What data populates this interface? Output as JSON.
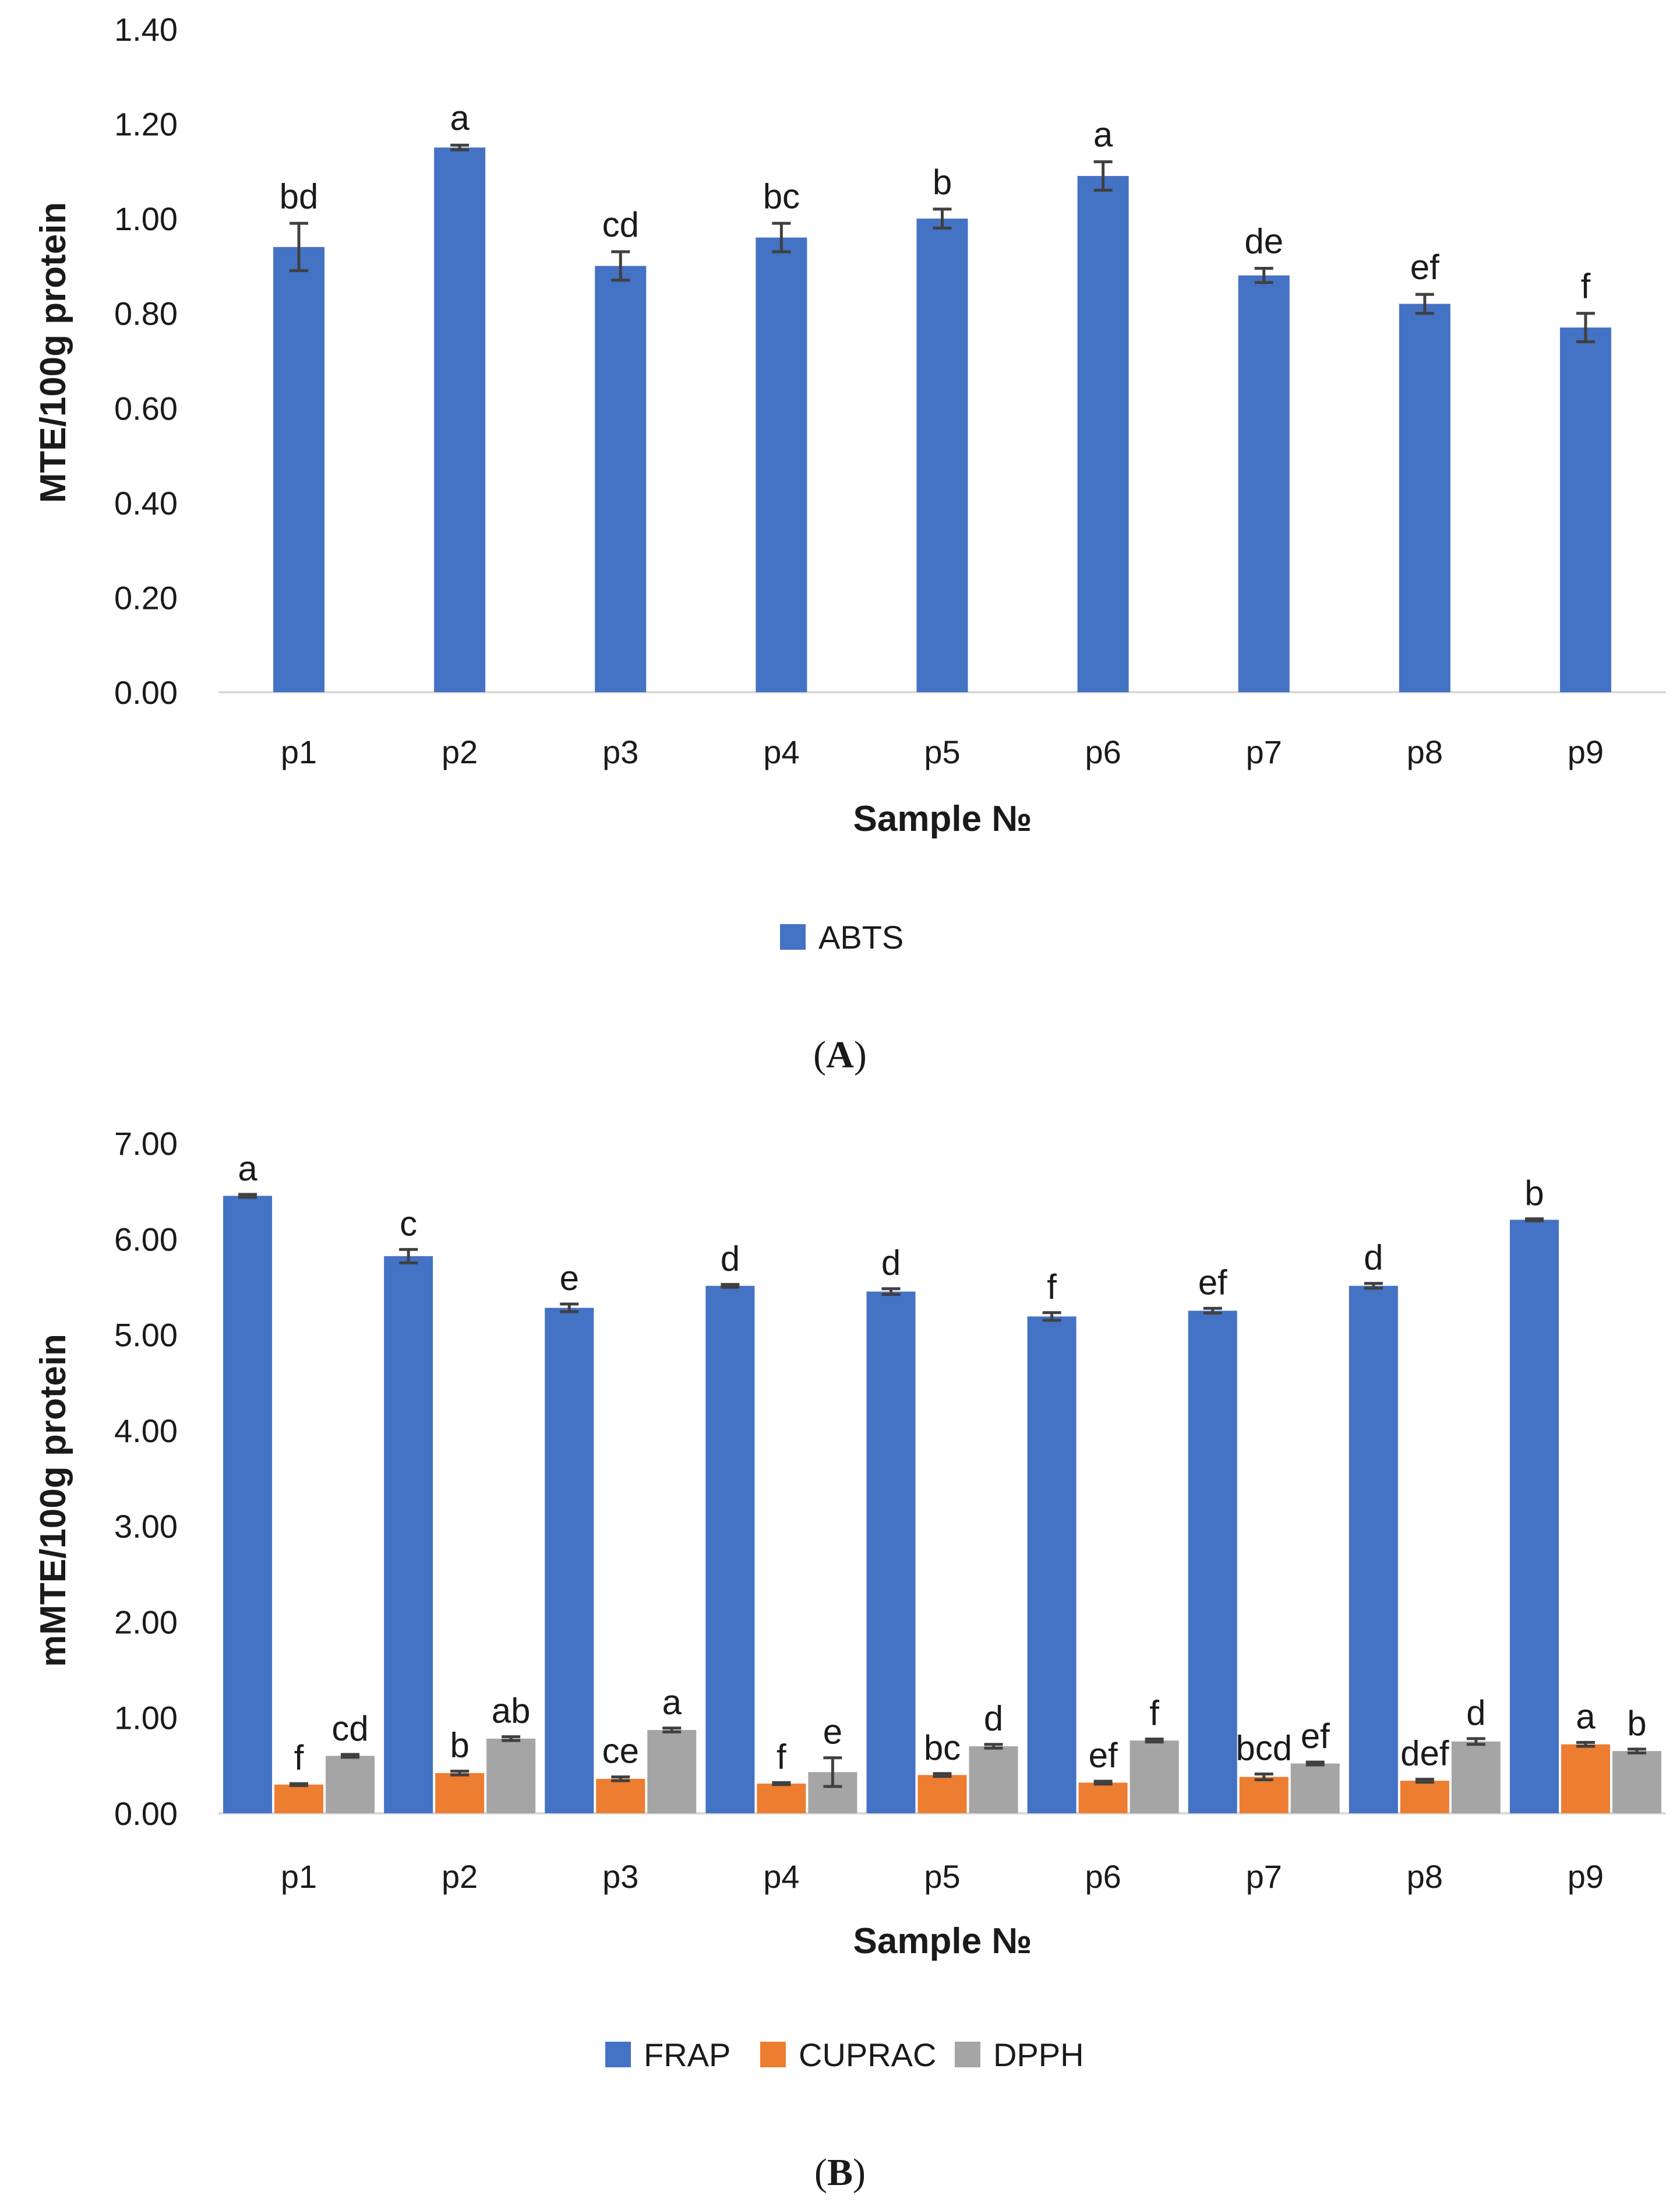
{
  "colors": {
    "ABTS": "#4472C4",
    "FRAP": "#4472C4",
    "CUPRAC": "#ED7D31",
    "DPPH": "#A5A5A5",
    "error_bar": "#404040",
    "axis_line": "#D9D9D9"
  },
  "chart_data": [
    {
      "type": "bar",
      "panel": "(A)",
      "panel_open": "(",
      "panel_letter": "A",
      "panel_close": ")",
      "categories": [
        "p1",
        "p2",
        "p3",
        "p4",
        "p5",
        "p6",
        "p7",
        "p8",
        "p9"
      ],
      "series": [
        {
          "name": "ABTS",
          "values": [
            0.94,
            1.15,
            0.9,
            0.96,
            1.0,
            1.09,
            0.88,
            0.82,
            0.77
          ],
          "errors": [
            0.05,
            0.005,
            0.03,
            0.03,
            0.02,
            0.03,
            0.015,
            0.02,
            0.03
          ],
          "letters": [
            "bd",
            "a",
            "cd",
            "bc",
            "b",
            "a",
            "de",
            "ef",
            "f"
          ]
        }
      ],
      "xlabel": "Sample №",
      "ylabel": "MTE/100g protein",
      "ylim": [
        0,
        1.4
      ],
      "yticks": [
        "0.00",
        "0.20",
        "0.40",
        "0.60",
        "0.80",
        "1.00",
        "1.20",
        "1.40"
      ],
      "grid": false,
      "legend": "bottom-center"
    },
    {
      "type": "bar",
      "panel": "(B)",
      "panel_open": "(",
      "panel_letter": "B",
      "panel_close": ")",
      "categories": [
        "p1",
        "p2",
        "p3",
        "p4",
        "p5",
        "p6",
        "p7",
        "p8",
        "p9"
      ],
      "series": [
        {
          "name": "FRAP",
          "values": [
            6.45,
            5.82,
            5.28,
            5.51,
            5.45,
            5.19,
            5.25,
            5.51,
            6.2
          ],
          "errors": [
            0.015,
            0.07,
            0.04,
            0.015,
            0.03,
            0.04,
            0.025,
            0.025,
            0.01
          ],
          "letters": [
            "a",
            "c",
            "e",
            "d",
            "d",
            "f",
            "ef",
            "d",
            "b"
          ]
        },
        {
          "name": "CUPRAC",
          "values": [
            0.3,
            0.42,
            0.36,
            0.31,
            0.4,
            0.32,
            0.38,
            0.34,
            0.72
          ],
          "errors": [
            0.01,
            0.02,
            0.02,
            0.01,
            0.015,
            0.015,
            0.03,
            0.015,
            0.02
          ],
          "letters": [
            "f",
            "b",
            "ce",
            "f",
            "bc",
            "ef",
            "bcd",
            "def",
            "a"
          ]
        },
        {
          "name": "DPPH",
          "values": [
            0.6,
            0.78,
            0.87,
            0.43,
            0.7,
            0.76,
            0.52,
            0.75,
            0.65
          ],
          "errors": [
            0.015,
            0.02,
            0.02,
            0.15,
            0.02,
            0.015,
            0.015,
            0.03,
            0.02
          ],
          "letters": [
            "cd",
            "ab",
            "a",
            "e",
            "d",
            "f",
            "ef",
            "d",
            "b"
          ]
        }
      ],
      "xlabel": "Sample №",
      "ylabel": "mMTE/100g protein",
      "ylim": [
        0,
        7
      ],
      "yticks": [
        "0.00",
        "1.00",
        "2.00",
        "3.00",
        "4.00",
        "5.00",
        "6.00",
        "7.00"
      ],
      "grid": false,
      "legend": "bottom-center"
    }
  ]
}
